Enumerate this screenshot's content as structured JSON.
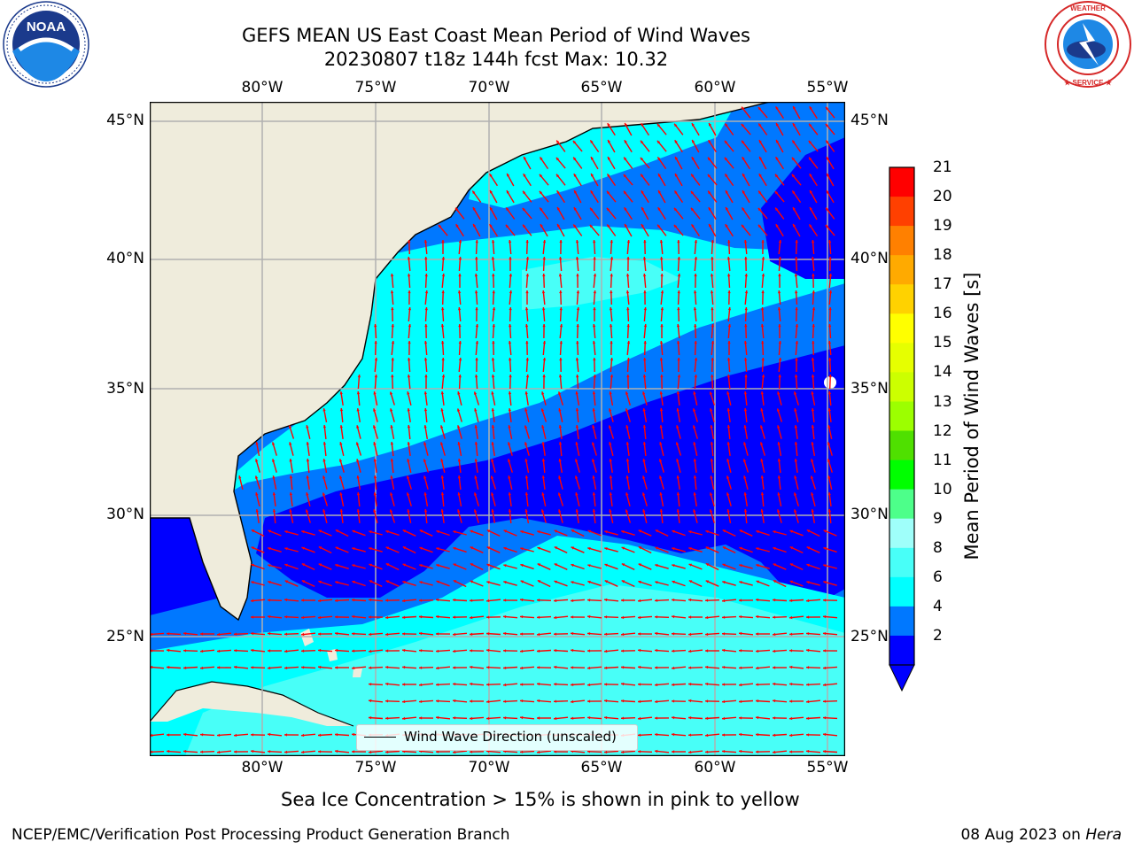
{
  "header": {
    "title_line1": "GEFS MEAN US East Coast Mean Period of Wind Waves",
    "title_line2": "20230807 t18z 144h fcst   Max: 10.32"
  },
  "logos": {
    "left": "NATIONAL OCEANIC AND ATMOSPHERIC ADMINISTRATION — U.S. DEPARTMENT OF COMMERCE — NOAA",
    "right": "NATIONAL WEATHER SERVICE"
  },
  "map": {
    "lon_ticks": [
      "80°W",
      "75°W",
      "70°W",
      "65°W",
      "60°W",
      "55°W"
    ],
    "lat_ticks": [
      "45°N",
      "40°N",
      "35°N",
      "30°N",
      "25°N"
    ],
    "legend_label": "Wind Wave Direction (unscaled)",
    "colors": {
      "land": "#efecdc",
      "level_0_2": "#0000ff",
      "level_2_4": "#0078ff",
      "level_4_6": "#00ffff",
      "level_6_8": "#48fff8",
      "arrow": "#ff0000",
      "grid": "#b0b0b0"
    }
  },
  "colorbar": {
    "label": "Mean Period of Wind Waves [s]",
    "ticks": [
      "2",
      "4",
      "6",
      "8",
      "9",
      "10",
      "11",
      "12",
      "13",
      "14",
      "15",
      "16",
      "17",
      "18",
      "19",
      "20",
      "21"
    ],
    "colors": [
      "#0000ff",
      "#0078ff",
      "#00ffff",
      "#48fff8",
      "#9ffffa",
      "#4dff8a",
      "#00ff00",
      "#4fe000",
      "#9cff00",
      "#ccff00",
      "#e6ff00",
      "#ffff00",
      "#ffd200",
      "#ffaa00",
      "#ff8000",
      "#ff4000",
      "#ff0000"
    ]
  },
  "footer": {
    "note": "Sea Ice Concentration > 15% is shown in pink to yellow",
    "branch": "NCEP/EMC/Verification Post Processing Product Generation Branch",
    "date": "08 Aug 2023 on ",
    "machine": "Hera"
  }
}
